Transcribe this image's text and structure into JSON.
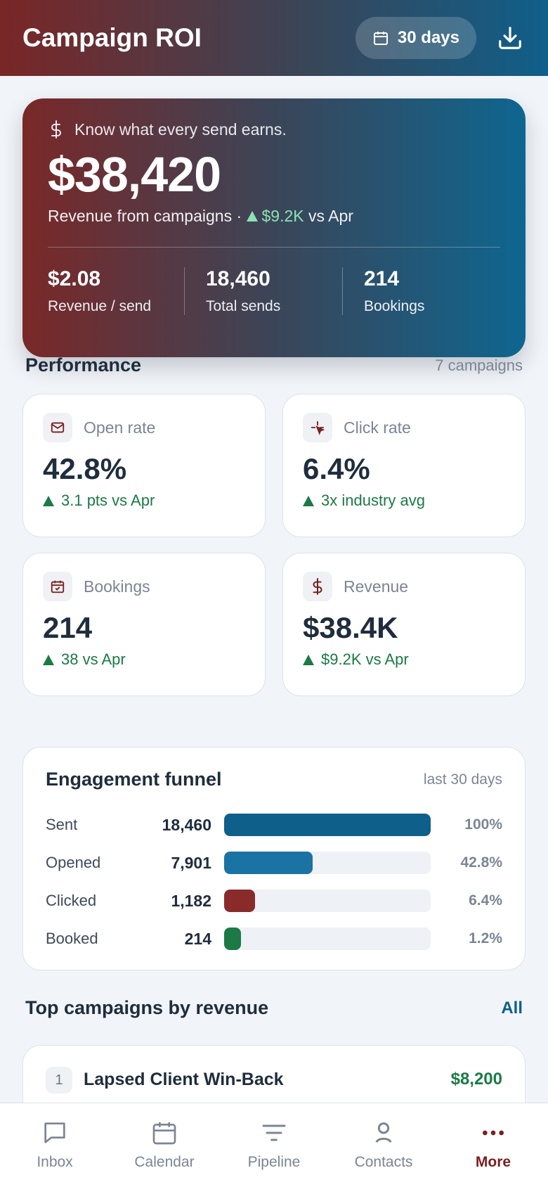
{
  "header": {
    "title": "Campaign ROI",
    "range_label": "30 days"
  },
  "hero": {
    "tagline": "Know what every send earns.",
    "amount": "$38,420",
    "subtitle": "Revenue from campaigns ·",
    "delta": "$9.2K",
    "delta_suffix": "vs Apr",
    "stats": [
      {
        "value": "$2.08",
        "label": "Revenue / send"
      },
      {
        "value": "18,460",
        "label": "Total sends"
      },
      {
        "value": "214",
        "label": "Bookings"
      }
    ]
  },
  "performance": {
    "title": "Performance",
    "meta": "7 campaigns",
    "kpis": [
      {
        "icon": "mail-icon",
        "label": "Open rate",
        "value": "42.8%",
        "delta": "3.1 pts vs Apr"
      },
      {
        "icon": "cursor-click-icon",
        "label": "Click rate",
        "value": "6.4%",
        "delta": "3x industry avg"
      },
      {
        "icon": "calendar-check-icon",
        "label": "Bookings",
        "value": "214",
        "delta": "38 vs Apr"
      },
      {
        "icon": "dollar-icon",
        "label": "Revenue",
        "value": "$38.4K",
        "delta": "$9.2K vs Apr"
      }
    ]
  },
  "funnel": {
    "title": "Engagement funnel",
    "meta": "last 30 days",
    "rows": [
      {
        "label": "Sent",
        "count": "18,460",
        "pct": "100%",
        "fraction": 1.0,
        "color": "#0e5f8a"
      },
      {
        "label": "Opened",
        "count": "7,901",
        "pct": "42.8%",
        "fraction": 0.428,
        "color": "#1a73a3"
      },
      {
        "label": "Clicked",
        "count": "1,182",
        "pct": "6.4%",
        "fraction": 0.15,
        "color": "#8a2b2b"
      },
      {
        "label": "Booked",
        "count": "214",
        "pct": "1.2%",
        "fraction": 0.08,
        "color": "#1b7a45"
      }
    ]
  },
  "top_campaigns": {
    "title": "Top campaigns by revenue",
    "link": "All",
    "items": [
      {
        "rank": "1",
        "name": "Lapsed Client Win-Back",
        "revenue": "$8,200"
      }
    ]
  },
  "tabbar": {
    "items": [
      {
        "label": "Inbox",
        "icon": "chat-icon"
      },
      {
        "label": "Calendar",
        "icon": "calendar-icon"
      },
      {
        "label": "Pipeline",
        "icon": "filter-icon"
      },
      {
        "label": "Contacts",
        "icon": "person-icon"
      },
      {
        "label": "More",
        "icon": "more-icon"
      }
    ],
    "active": "More"
  }
}
